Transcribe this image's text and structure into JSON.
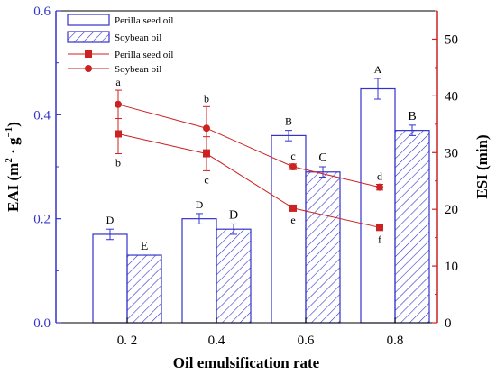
{
  "chart_data": {
    "type": "bar",
    "title": "",
    "xlabel": "Oil emulsification rate",
    "categories": [
      "0. 2",
      "0.4",
      "0.6",
      "0.8"
    ],
    "y_left": {
      "label": "EAI (m² · g⁻¹)",
      "range": [
        0.0,
        0.6
      ],
      "ticks": [
        "0.0",
        "0.2",
        "0.4",
        "0.6"
      ]
    },
    "y_right": {
      "label": "ESI (min)",
      "range": [
        0,
        55
      ],
      "ticks": [
        "0",
        "10",
        "20",
        "30",
        "40",
        "50"
      ]
    },
    "bar_series": [
      {
        "name": "Perilla seed oil",
        "values": [
          0.17,
          0.2,
          0.36,
          0.45
        ],
        "errors": [
          0.01,
          0.01,
          0.01,
          0.02
        ],
        "labels": [
          "D",
          "D",
          "B",
          "A"
        ],
        "color": "#3333cc",
        "fill": "none"
      },
      {
        "name": "Soybean oil",
        "values": [
          0.13,
          0.18,
          0.29,
          0.37
        ],
        "errors": [
          0.0,
          0.01,
          0.01,
          0.01
        ],
        "labels": [
          "E",
          "D",
          "C",
          "B"
        ],
        "color": "#3333cc",
        "fill": "hatch"
      }
    ],
    "line_series": [
      {
        "name": "Perilla seed oil",
        "values": [
          33.3,
          29.8,
          20.2,
          16.8
        ],
        "errors": [
          3.5,
          3.0,
          0.5,
          0.5
        ],
        "labels": [
          "b",
          "c",
          "e",
          "f"
        ],
        "color": "#cc2222",
        "marker": "square"
      },
      {
        "name": "Soybean oil",
        "values": [
          38.5,
          34.3,
          27.5,
          23.9
        ],
        "errors": [
          2.5,
          3.8,
          0.5,
          0.5
        ],
        "labels": [
          "a",
          "b",
          "c",
          "d"
        ],
        "color": "#cc2222",
        "marker": "circle"
      }
    ],
    "legend": {
      "placement": "top-left",
      "items": [
        "Perilla seed oil",
        "Soybean oil",
        "Perilla seed oil",
        "Soybean oil"
      ]
    },
    "grid": false
  }
}
